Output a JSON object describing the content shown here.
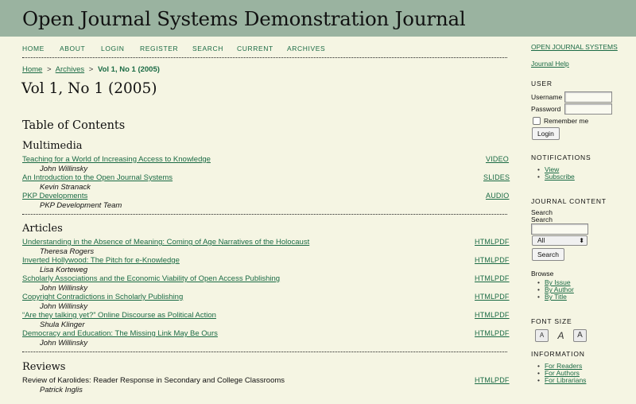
{
  "header": {
    "title": "Open Journal Systems Demonstration Journal"
  },
  "nav": [
    {
      "label": "HOME"
    },
    {
      "label": "ABOUT"
    },
    {
      "label": "LOGIN"
    },
    {
      "label": "REGISTER"
    },
    {
      "label": "SEARCH"
    },
    {
      "label": "CURRENT"
    },
    {
      "label": "ARCHIVES"
    }
  ],
  "breadcrumb": {
    "home": "Home",
    "archives": "Archives",
    "current": "Vol 1, No 1 (2005)",
    "separator": ">"
  },
  "page_title": "Vol 1, No 1 (2005)",
  "toc_heading": "Table of Contents",
  "sections": [
    {
      "title": "Multimedia",
      "items": [
        {
          "title": "Teaching for a World of Increasing Access to Knowledge",
          "author": "John Willinsky",
          "galleys": [
            "VIDEO"
          ]
        },
        {
          "title": "An Introduction to the Open Journal Systems",
          "author": "Kevin Stranack",
          "galleys": [
            "SLIDES"
          ]
        },
        {
          "title": "PKP Developments",
          "author": "PKP Development Team",
          "galleys": [
            "AUDIO"
          ]
        }
      ]
    },
    {
      "title": "Articles",
      "items": [
        {
          "title": "Understanding in the Absence of Meaning: Coming of Age Narratives of the Holocaust",
          "author": "Theresa Rogers",
          "galleys": [
            "HTML",
            "PDF"
          ]
        },
        {
          "title": "Inverted Hollywood: The Pitch for e-Knowledge",
          "author": "Lisa Korteweg",
          "galleys": [
            "HTML",
            "PDF"
          ]
        },
        {
          "title": "Scholarly Associations and the Economic Viability of Open Access Publishing",
          "author": "John Willinsky",
          "galleys": [
            "HTML",
            "PDF"
          ]
        },
        {
          "title": "Copyright Contradictions in Scholarly Publishing",
          "author": "John Willinsky",
          "galleys": [
            "HTML",
            "PDF"
          ]
        },
        {
          "title": "“Are they talking yet?” Online Discourse as Political Action",
          "author": "Shula Klinger",
          "galleys": [
            "HTML",
            "PDF"
          ]
        },
        {
          "title": "Democracy and Education: The Missing Link May Be Ours",
          "author": "John Willinsky",
          "galleys": [
            "HTML",
            "PDF"
          ]
        }
      ]
    },
    {
      "title": "Reviews",
      "items": [
        {
          "title": "Review of Karolides: Reader Response in Secondary and College Classrooms",
          "author": "Patrick Inglis",
          "galleys": [
            "HTML",
            "PDF"
          ]
        }
      ]
    }
  ],
  "sidebar": {
    "ojs_link": "OPEN JOURNAL SYSTEMS",
    "help_link": "Journal Help",
    "user": {
      "heading": "USER",
      "username_label": "Username",
      "password_label": "Password",
      "remember_label": "Remember me",
      "login_button": "Login"
    },
    "notifications": {
      "heading": "NOTIFICATIONS",
      "items": [
        "View",
        "Subscribe"
      ]
    },
    "journal_content": {
      "heading": "JOURNAL CONTENT",
      "search_heading": "Search",
      "search_label": "Search",
      "scope_selected": "All",
      "search_button": "Search",
      "browse_label": "Browse",
      "browse_items": [
        "By Issue",
        "By Author",
        "By Title"
      ]
    },
    "font_size": {
      "heading": "FONT SIZE",
      "buttons": [
        "A",
        "A",
        "A"
      ]
    },
    "information": {
      "heading": "INFORMATION",
      "items": [
        "For Readers",
        "For Authors",
        "For Librarians"
      ]
    }
  }
}
